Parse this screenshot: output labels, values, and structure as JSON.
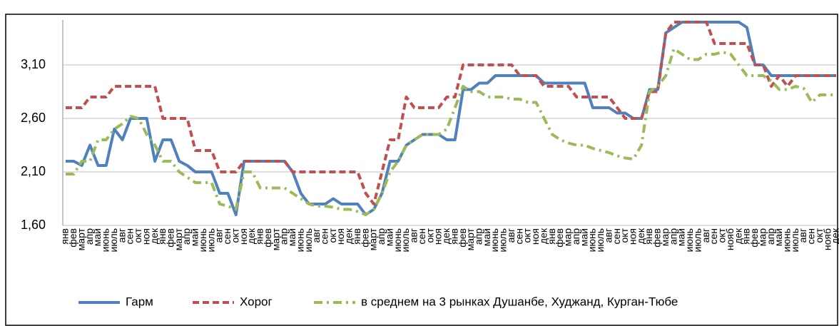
{
  "chart_data": {
    "type": "line",
    "categories": [
      "янв",
      "фев",
      "март",
      "апр",
      "май",
      "июнь",
      "июль",
      "авг",
      "сен",
      "окт",
      "ноя",
      "дек",
      "янв",
      "фев",
      "март",
      "апр",
      "май",
      "июнь",
      "июль",
      "авг",
      "сен",
      "окт",
      "ноя",
      "дек",
      "янв",
      "фев",
      "март",
      "апр",
      "май",
      "июнь",
      "июль",
      "авг",
      "сен",
      "окт",
      "ноя",
      "дек",
      "янв",
      "фев",
      "март",
      "апр",
      "май",
      "июнь",
      "июль",
      "авг",
      "сен",
      "окт",
      "ноя",
      "дек",
      "янв",
      "фев",
      "март",
      "апр",
      "май",
      "июнь",
      "июль",
      "авг",
      "сен",
      "окт",
      "ноя",
      "дек",
      "янв",
      "фев",
      "мар",
      "апр",
      "май",
      "июнь",
      "июль",
      "авг",
      "сен",
      "окт",
      "ноя",
      "дек",
      "янв",
      "фев",
      "мар",
      "апр",
      "май",
      "июнь",
      "июль",
      "авг",
      "сен",
      "окт",
      "нояб",
      "дек",
      "янв",
      "фев",
      "мар",
      "апр",
      "май",
      "июнь",
      "июль",
      "авг",
      "сен",
      "окт",
      "нояб",
      "дек"
    ],
    "series": [
      {
        "name": "Гарм",
        "color": "#4f81bd",
        "dash": "solid",
        "values": [
          2.2,
          2.2,
          2.16,
          2.35,
          2.16,
          2.16,
          2.5,
          2.4,
          2.6,
          2.6,
          2.6,
          2.2,
          2.4,
          2.4,
          2.2,
          2.16,
          2.1,
          2.1,
          2.1,
          1.9,
          1.9,
          1.7,
          2.2,
          2.2,
          2.2,
          2.2,
          2.2,
          2.2,
          2.1,
          1.9,
          1.8,
          1.8,
          1.8,
          1.85,
          1.8,
          1.8,
          1.8,
          1.7,
          1.75,
          1.9,
          2.2,
          2.2,
          2.35,
          2.4,
          2.45,
          2.45,
          2.45,
          2.4,
          2.4,
          2.87,
          2.87,
          2.93,
          2.93,
          3.0,
          3.0,
          3.0,
          3.0,
          3.0,
          3.0,
          2.93,
          2.93,
          2.93,
          2.93,
          2.93,
          2.93,
          2.7,
          2.7,
          2.7,
          2.65,
          2.65,
          2.6,
          2.6,
          2.87,
          2.87,
          3.4,
          3.45,
          3.5,
          3.5,
          3.5,
          3.5,
          3.5,
          3.5,
          3.5,
          3.5,
          3.45,
          3.1,
          3.1,
          3.0,
          3.0,
          3.0,
          3.0,
          3.0,
          3.0,
          3.0,
          3.0,
          3.0
        ]
      },
      {
        "name": "Хорог",
        "color": "#c0504d",
        "dash": "dashed",
        "values": [
          2.7,
          2.7,
          2.7,
          2.8,
          2.8,
          2.8,
          2.9,
          2.9,
          2.9,
          2.9,
          2.9,
          2.9,
          2.6,
          2.6,
          2.6,
          2.6,
          2.3,
          2.3,
          2.3,
          2.1,
          2.1,
          2.1,
          2.2,
          2.2,
          2.2,
          2.2,
          2.2,
          2.2,
          2.1,
          2.1,
          2.1,
          2.1,
          2.1,
          2.1,
          2.1,
          2.1,
          2.1,
          1.9,
          1.8,
          2.1,
          2.4,
          2.4,
          2.8,
          2.7,
          2.7,
          2.7,
          2.7,
          2.8,
          2.8,
          3.1,
          3.1,
          3.1,
          3.1,
          3.1,
          3.1,
          3.1,
          3.0,
          3.0,
          3.0,
          2.9,
          2.9,
          2.9,
          2.9,
          2.8,
          2.8,
          2.8,
          2.8,
          2.8,
          2.7,
          2.6,
          2.6,
          2.6,
          2.85,
          2.85,
          3.4,
          3.5,
          3.5,
          3.5,
          3.5,
          3.5,
          3.3,
          3.3,
          3.3,
          3.3,
          3.3,
          3.1,
          3.1,
          2.9,
          3.0,
          2.9,
          3.0,
          3.0,
          3.0,
          3.0,
          3.0,
          3.0
        ]
      },
      {
        "name": "в среднем на 3 рынках Душанбе, Худжанд, Курган-Тюбе",
        "color": "#9bbb59",
        "dash": "dashdot",
        "values": [
          2.08,
          2.08,
          2.2,
          2.2,
          2.4,
          2.4,
          2.5,
          2.55,
          2.62,
          2.6,
          2.45,
          2.35,
          2.2,
          2.2,
          2.1,
          2.05,
          2.0,
          2.0,
          2.0,
          1.8,
          1.78,
          1.75,
          2.1,
          2.1,
          1.95,
          1.95,
          1.95,
          1.95,
          1.9,
          1.85,
          1.8,
          1.78,
          1.78,
          1.77,
          1.75,
          1.75,
          1.73,
          1.7,
          1.75,
          1.9,
          2.1,
          2.2,
          2.35,
          2.4,
          2.45,
          2.45,
          2.45,
          2.5,
          2.7,
          2.9,
          2.85,
          2.85,
          2.8,
          2.8,
          2.8,
          2.78,
          2.78,
          2.75,
          2.75,
          2.6,
          2.45,
          2.4,
          2.37,
          2.35,
          2.35,
          2.32,
          2.3,
          2.28,
          2.25,
          2.23,
          2.22,
          2.35,
          2.85,
          2.9,
          3.0,
          3.25,
          3.2,
          3.15,
          3.15,
          3.2,
          3.2,
          3.22,
          3.2,
          3.1,
          3.0,
          3.0,
          3.0,
          2.95,
          2.87,
          2.87,
          2.9,
          2.88,
          2.75,
          2.82,
          2.82,
          2.82
        ]
      }
    ],
    "ylim": [
      1.6,
      3.5
    ],
    "yticks": [
      {
        "value": 1.6,
        "label": "1,60"
      },
      {
        "value": 2.1,
        "label": "2,10"
      },
      {
        "value": 2.6,
        "label": "2,60"
      },
      {
        "value": 3.1,
        "label": "3,10"
      }
    ],
    "grid": true,
    "legend": "bottom"
  }
}
